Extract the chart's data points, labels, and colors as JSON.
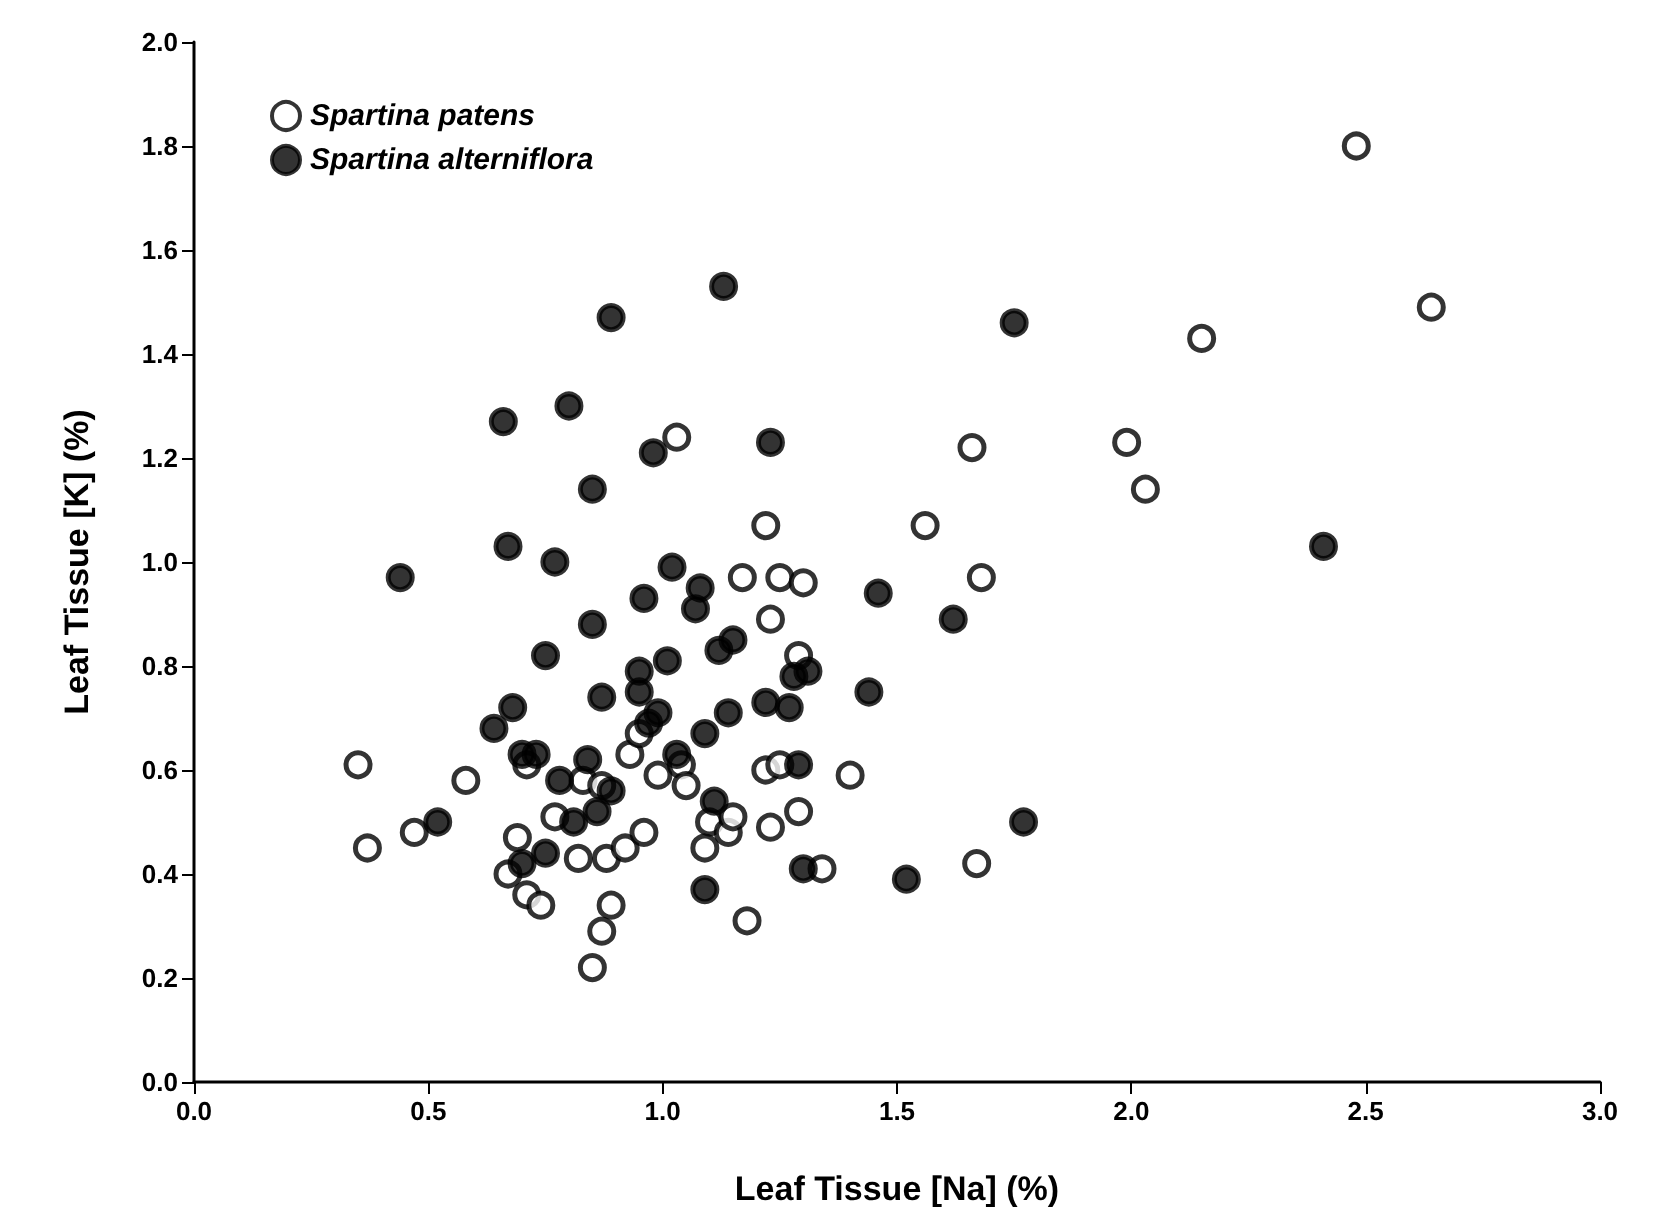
{
  "chart_data": {
    "type": "scatter",
    "xlabel": "Leaf Tissue [Na] (%)",
    "ylabel": "Leaf Tissue [K] (%)",
    "legend": "top left",
    "grid": false,
    "marker": "circle",
    "xlim": [
      0,
      3
    ],
    "ylim": [
      0,
      2
    ],
    "xticks": [
      {
        "value": 0,
        "label": "0.0"
      },
      {
        "value": 0.5,
        "label": "0.5"
      },
      {
        "value": 1,
        "label": "1.0"
      },
      {
        "value": 1.5,
        "label": "1.5"
      },
      {
        "value": 2,
        "label": "2.0"
      },
      {
        "value": 2.5,
        "label": "2.5"
      },
      {
        "value": 3,
        "label": "3.0"
      }
    ],
    "yticks": [
      {
        "value": 0,
        "label": "0.0"
      },
      {
        "value": 0.2,
        "label": "0.2"
      },
      {
        "value": 0.4,
        "label": "0.4"
      },
      {
        "value": 0.6,
        "label": "0.6"
      },
      {
        "value": 0.8,
        "label": "0.8"
      },
      {
        "value": 1,
        "label": "1.0"
      },
      {
        "value": 1.2,
        "label": "1.2"
      },
      {
        "value": 1.4,
        "label": "1.4"
      },
      {
        "value": 1.6,
        "label": "1.6"
      },
      {
        "value": 1.8,
        "label": "1.8"
      },
      {
        "value": 2,
        "label": "2.0"
      }
    ],
    "series": [
      {
        "name": "Spartina patens",
        "color": "#ffffff",
        "x": [
          0.35,
          0.37,
          0.47,
          0.58,
          0.67,
          0.69,
          0.71,
          0.71,
          0.74,
          0.77,
          0.82,
          0.83,
          0.85,
          0.87,
          0.87,
          0.88,
          0.89,
          0.92,
          0.93,
          0.95,
          0.96,
          0.99,
          1.03,
          1.04,
          1.05,
          1.09,
          1.1,
          1.14,
          1.15,
          1.17,
          1.18,
          1.22,
          1.22,
          1.23,
          1.23,
          1.25,
          1.25,
          1.29,
          1.29,
          1.3,
          1.34,
          1.4,
          1.56,
          1.66,
          1.67,
          1.68,
          1.99,
          2.03,
          2.15,
          2.48,
          2.64
        ],
        "values": [
          0.61,
          0.45,
          0.48,
          0.58,
          0.4,
          0.47,
          0.36,
          0.61,
          0.34,
          0.51,
          0.43,
          0.58,
          0.22,
          0.29,
          0.57,
          0.43,
          0.34,
          0.45,
          0.63,
          0.67,
          0.48,
          0.59,
          1.24,
          0.61,
          0.57,
          0.45,
          0.5,
          0.48,
          0.51,
          0.97,
          0.31,
          0.6,
          1.07,
          0.89,
          0.49,
          0.97,
          0.61,
          0.82,
          0.52,
          0.96,
          0.41,
          0.59,
          1.07,
          1.22,
          0.42,
          0.97,
          1.23,
          1.14,
          1.43,
          1.8,
          1.49
        ]
      },
      {
        "name": "Spartina alterniflora",
        "color": "#000000",
        "x": [
          0.44,
          0.52,
          0.64,
          0.66,
          0.67,
          0.68,
          0.7,
          0.7,
          0.73,
          0.75,
          0.75,
          0.77,
          0.78,
          0.8,
          0.81,
          0.84,
          0.85,
          0.85,
          0.86,
          0.87,
          0.89,
          0.89,
          0.95,
          0.95,
          0.96,
          0.97,
          0.98,
          0.99,
          1.01,
          1.02,
          1.03,
          1.07,
          1.08,
          1.09,
          1.09,
          1.11,
          1.12,
          1.13,
          1.14,
          1.15,
          1.23,
          1.22,
          1.27,
          1.28,
          1.29,
          1.3,
          1.31,
          1.44,
          1.46,
          1.52,
          1.62,
          1.75,
          1.77,
          2.41
        ],
        "values": [
          0.97,
          0.5,
          0.68,
          1.27,
          1.03,
          0.72,
          0.42,
          0.63,
          0.63,
          0.44,
          0.82,
          1.0,
          0.58,
          1.3,
          0.5,
          0.62,
          1.14,
          0.88,
          0.52,
          0.74,
          1.47,
          0.56,
          0.79,
          0.75,
          0.93,
          0.69,
          1.21,
          0.71,
          0.81,
          0.99,
          0.63,
          0.91,
          0.95,
          0.37,
          0.67,
          0.54,
          0.83,
          1.53,
          0.71,
          0.85,
          1.23,
          0.73,
          0.72,
          0.78,
          0.61,
          0.41,
          0.79,
          0.75,
          0.94,
          0.39,
          0.89,
          1.46,
          0.5,
          1.03
        ]
      }
    ]
  }
}
